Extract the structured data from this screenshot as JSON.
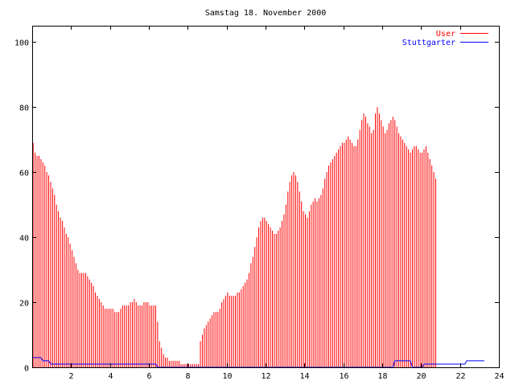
{
  "chart_data": {
    "type": "bar",
    "title": "Samstag 18. November 2000",
    "xlabel": "",
    "ylabel": "",
    "xlim": [
      0,
      24
    ],
    "ylim": [
      0,
      105
    ],
    "x_ticks": [
      2,
      4,
      6,
      8,
      10,
      12,
      14,
      16,
      18,
      20,
      22,
      24
    ],
    "y_ticks": [
      0,
      20,
      40,
      60,
      80,
      100
    ],
    "grid": false,
    "legend_position": "top-right",
    "interval_hours": 0.1,
    "series": [
      {
        "name": "User",
        "style": "impulses",
        "color": "#ff0000",
        "values": [
          69,
          66,
          65,
          65,
          64,
          63,
          62,
          60,
          59,
          57,
          55,
          53,
          50,
          48,
          46,
          45,
          43,
          41,
          40,
          38,
          36,
          34,
          32,
          30,
          29,
          29,
          29,
          29,
          28,
          27,
          26,
          25,
          23,
          22,
          21,
          20,
          19,
          18,
          18,
          18,
          18,
          18,
          17,
          17,
          17,
          18,
          19,
          19,
          19,
          19,
          20,
          20,
          21,
          20,
          19,
          19,
          19,
          20,
          20,
          20,
          19,
          19,
          19,
          19,
          14,
          8,
          6,
          4,
          3,
          3,
          2,
          2,
          2,
          2,
          2,
          2,
          1,
          1,
          1,
          1,
          1,
          1,
          1,
          1,
          1,
          1,
          8,
          10,
          12,
          13,
          14,
          15,
          16,
          17,
          17,
          17,
          18,
          20,
          21,
          22,
          23,
          22,
          22,
          22,
          22,
          23,
          23,
          24,
          25,
          26,
          27,
          29,
          32,
          34,
          37,
          40,
          43,
          45,
          46,
          46,
          45,
          44,
          43,
          42,
          41,
          41,
          42,
          43,
          45,
          47,
          50,
          54,
          57,
          59,
          60,
          59,
          57,
          54,
          51,
          48,
          47,
          46,
          48,
          50,
          51,
          52,
          51,
          52,
          53,
          55,
          58,
          60,
          62,
          63,
          64,
          65,
          66,
          67,
          68,
          69,
          69,
          70,
          71,
          70,
          69,
          68,
          68,
          70,
          73,
          76,
          78,
          77,
          75,
          74,
          72,
          73,
          78,
          80,
          78,
          76,
          74,
          72,
          73,
          75,
          76,
          77,
          76,
          74,
          72,
          71,
          70,
          69,
          68,
          67,
          66,
          67,
          68,
          68,
          67,
          66,
          66,
          67,
          68,
          66,
          64,
          62,
          60,
          58
        ]
      },
      {
        "name": "Stuttgarter",
        "style": "line",
        "color": "#0000ff",
        "values": [
          3,
          3,
          3,
          3,
          3,
          2,
          2,
          2,
          2,
          1,
          1,
          1,
          1,
          1,
          1,
          1,
          1,
          1,
          1,
          1,
          1,
          1,
          1,
          1,
          1,
          1,
          1,
          1,
          1,
          1,
          1,
          1,
          1,
          1,
          1,
          1,
          1,
          1,
          1,
          1,
          1,
          1,
          1,
          1,
          1,
          1,
          1,
          1,
          1,
          1,
          1,
          1,
          1,
          1,
          1,
          1,
          1,
          1,
          1,
          1,
          1,
          1,
          1,
          1,
          0,
          0,
          0,
          0,
          0,
          0,
          0,
          0,
          0,
          0,
          0,
          0,
          0,
          0,
          0,
          0,
          0,
          0,
          0,
          0,
          0,
          0,
          0,
          0,
          0,
          0,
          0,
          0,
          0,
          0,
          0,
          0,
          0,
          0,
          0,
          0,
          0,
          0,
          0,
          0,
          0,
          0,
          0,
          0,
          0,
          0,
          0,
          0,
          0,
          0,
          0,
          0,
          0,
          0,
          0,
          0,
          0,
          0,
          0,
          0,
          0,
          0,
          0,
          0,
          0,
          0,
          0,
          0,
          0,
          0,
          0,
          0,
          0,
          0,
          0,
          0,
          0,
          0,
          0,
          0,
          0,
          0,
          0,
          0,
          0,
          0,
          0,
          0,
          0,
          0,
          0,
          0,
          0,
          0,
          0,
          0,
          0,
          0,
          0,
          0,
          0,
          0,
          0,
          0,
          0,
          0,
          0,
          0,
          0,
          0,
          0,
          0,
          0,
          0,
          0,
          0,
          0,
          0,
          0,
          0,
          0,
          0,
          2,
          2,
          2,
          2,
          2,
          2,
          2,
          2,
          2,
          0,
          0,
          0,
          0,
          0,
          0,
          1,
          1,
          1,
          1,
          1,
          1,
          1,
          1,
          1,
          1,
          1,
          1,
          1,
          1,
          1,
          1,
          1,
          1,
          1,
          1,
          1,
          1,
          2,
          2,
          2,
          2,
          2,
          2,
          2,
          2,
          2,
          2
        ]
      }
    ]
  }
}
